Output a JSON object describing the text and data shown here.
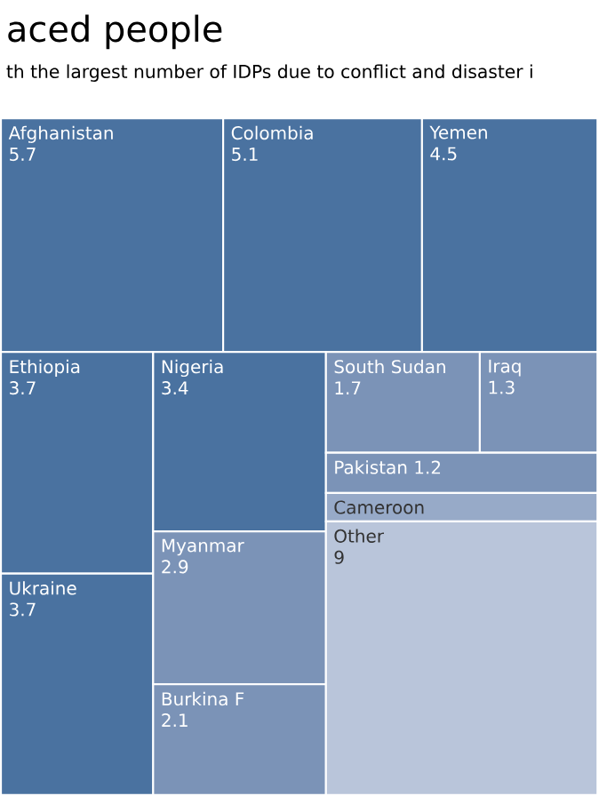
{
  "chart_data": {
    "type": "other",
    "title": "aced people",
    "subtitle": "th the largest number of IDPs due to conflict and disaster i",
    "categories": [
      "Afghanistan",
      "Colombia",
      "Yemen",
      "Ethiopia",
      "Ukraine",
      "Nigeria",
      "Myanmar",
      "Burkina F",
      "South Sudan",
      "Iraq",
      "Pakistan",
      "Cameroon",
      "Other"
    ],
    "values": [
      5.7,
      5.1,
      4.5,
      3.7,
      3.7,
      3.4,
      2.9,
      2.1,
      1.7,
      1.3,
      1.2,
      null,
      9
    ],
    "colors": [
      "#4a72a0",
      "#4a72a0",
      "#4a72a0",
      "#4a72a0",
      "#4a72a0",
      "#4a72a0",
      "#7b93b7",
      "#7b93b7",
      "#7b93b7",
      "#7b93b7",
      "#7b93b7",
      "#97aac8",
      "#b9c5da"
    ],
    "data_labels": true
  }
}
